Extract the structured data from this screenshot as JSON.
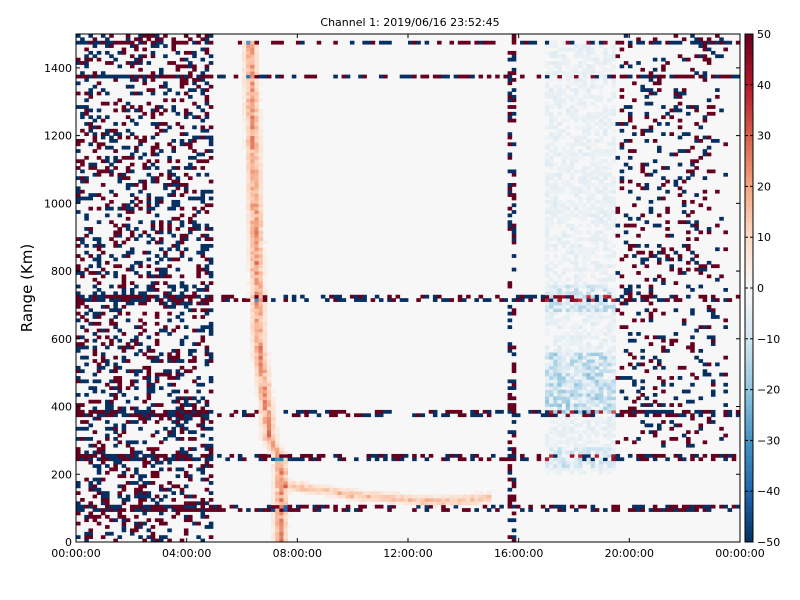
{
  "chart_data": {
    "type": "heatmap",
    "title": "Channel 1: 2019/06/16 23:52:45",
    "xlabel": "",
    "ylabel": "Range (Km)",
    "x_ticks": [
      "00:00:00",
      "04:00:00",
      "08:00:00",
      "12:00:00",
      "16:00:00",
      "20:00:00",
      "00:00:00"
    ],
    "x_range_hours": [
      0,
      24
    ],
    "y_ticks": [
      0,
      200,
      400,
      600,
      800,
      1000,
      1200,
      1400
    ],
    "ylim": [
      0,
      1500
    ],
    "colorbar": {
      "range": [
        -50,
        50
      ],
      "ticks": [
        50,
        40,
        30,
        20,
        10,
        0,
        -10,
        -20,
        -30,
        -40,
        -50
      ],
      "tick_labels": [
        "50",
        "40",
        "30",
        "20",
        "10",
        "0",
        "−10",
        "−20",
        "−30",
        "−40",
        "−50"
      ],
      "colormap": "RdBu_r",
      "colors": [
        "#053061",
        "#2166ac",
        "#4393c3",
        "#92c5de",
        "#d1e5f0",
        "#f7f7f7",
        "#fddbc7",
        "#f4a582",
        "#d6604d",
        "#b2182b",
        "#67001f"
      ]
    },
    "features": {
      "noisy_time_windows_hours": [
        [
          0,
          5
        ]
      ],
      "dense_interference_ranges_km": [
        1375,
        1475,
        720,
        380,
        250,
        100
      ],
      "positive_front": {
        "time_hours": [
          6.3,
          6.6,
          7.0,
          7.4
        ],
        "range_km": [
          1480,
          600,
          300,
          250
        ],
        "value": 25
      },
      "positive_trail": {
        "time_hours": [
          7.5,
          10,
          13,
          15
        ],
        "range_km": [
          170,
          140,
          120,
          130
        ],
        "value": 20
      },
      "negative_patch": {
        "time_hours": [
          17,
          19.5
        ],
        "range_km": [
          200,
          1480
        ],
        "value": -22
      },
      "right_noise_window_hours": [
        [
          19.5,
          24
        ]
      ],
      "vertical_stripe_hours": [
        15.6,
        15.9
      ]
    },
    "grid": false,
    "legend": "colorbar-right"
  }
}
